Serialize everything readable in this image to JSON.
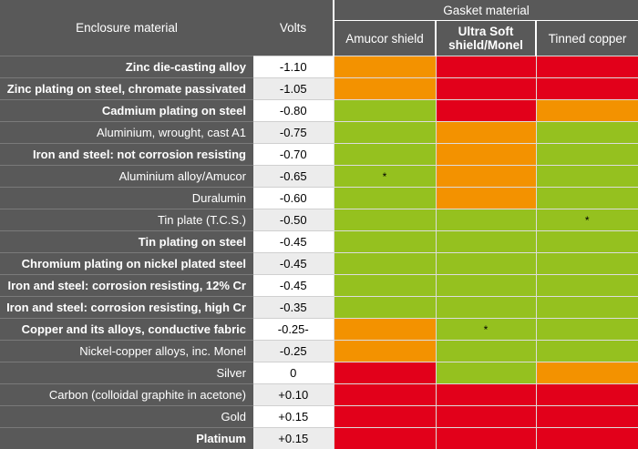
{
  "colors": {
    "header_bg": "#595959",
    "orange": "#f39200",
    "red": "#e2001a",
    "green": "#95c11f"
  },
  "header": {
    "enclosure_material": "Enclosure material",
    "volts": "Volts",
    "gasket_material": "Gasket material",
    "gaskets": [
      {
        "label_line1": "Amucor shield",
        "label_line2": "",
        "bold": false
      },
      {
        "label_line1": "Ultra Soft",
        "label_line2": "shield/Monel",
        "bold": true
      },
      {
        "label_line1": "Tinned copper",
        "label_line2": "",
        "bold": false
      }
    ]
  },
  "rows": [
    {
      "material": "Zinc die-casting alloy",
      "bold": true,
      "volts": "-1.10",
      "cells": [
        "orange",
        "red",
        "red"
      ],
      "marks": [
        "",
        "",
        ""
      ]
    },
    {
      "material": "Zinc plating on steel, chromate passivated",
      "bold": true,
      "volts": "-1.05",
      "cells": [
        "orange",
        "red",
        "red"
      ],
      "marks": [
        "",
        "",
        ""
      ]
    },
    {
      "material": "Cadmium plating on steel",
      "bold": true,
      "volts": "-0.80",
      "cells": [
        "green",
        "red",
        "orange"
      ],
      "marks": [
        "",
        "",
        ""
      ]
    },
    {
      "material": "Aluminium, wrought, cast A1",
      "bold": false,
      "volts": "-0.75",
      "cells": [
        "green",
        "orange",
        "green"
      ],
      "marks": [
        "",
        "",
        ""
      ]
    },
    {
      "material": "Iron and steel: not corrosion resisting",
      "bold": true,
      "volts": "-0.70",
      "cells": [
        "green",
        "orange",
        "green"
      ],
      "marks": [
        "",
        "",
        ""
      ]
    },
    {
      "material": "Aluminium alloy/Amucor",
      "bold": false,
      "volts": "-0.65",
      "cells": [
        "green",
        "orange",
        "green"
      ],
      "marks": [
        "*",
        "",
        ""
      ]
    },
    {
      "material": "Duralumin",
      "bold": false,
      "volts": "-0.60",
      "cells": [
        "green",
        "orange",
        "green"
      ],
      "marks": [
        "",
        "",
        ""
      ]
    },
    {
      "material": "Tin plate (T.C.S.)",
      "bold": false,
      "volts": "-0.50",
      "cells": [
        "green",
        "green",
        "green"
      ],
      "marks": [
        "",
        "",
        "*"
      ]
    },
    {
      "material": "Tin plating on steel",
      "bold": true,
      "volts": "-0.45",
      "cells": [
        "green",
        "green",
        "green"
      ],
      "marks": [
        "",
        "",
        ""
      ]
    },
    {
      "material": "Chromium plating on nickel plated steel",
      "bold": true,
      "volts": "-0.45",
      "cells": [
        "green",
        "green",
        "green"
      ],
      "marks": [
        "",
        "",
        ""
      ]
    },
    {
      "material": "Iron and steel: corrosion resisting, 12% Cr",
      "bold": true,
      "volts": "-0.45",
      "cells": [
        "green",
        "green",
        "green"
      ],
      "marks": [
        "",
        "",
        ""
      ]
    },
    {
      "material": "Iron and steel: corrosion resisting, high Cr",
      "bold": true,
      "volts": "-0.35",
      "cells": [
        "green",
        "green",
        "green"
      ],
      "marks": [
        "",
        "",
        ""
      ]
    },
    {
      "material": "Copper and its alloys, conductive fabric",
      "bold": true,
      "volts": "-0.25-",
      "cells": [
        "orange",
        "green",
        "green"
      ],
      "marks": [
        "",
        "*",
        ""
      ]
    },
    {
      "material": "Nickel-copper alloys, inc. Monel",
      "bold": false,
      "volts": "-0.25",
      "cells": [
        "orange",
        "green",
        "green"
      ],
      "marks": [
        "",
        "",
        ""
      ]
    },
    {
      "material": "Silver",
      "bold": false,
      "volts": "0",
      "cells": [
        "red",
        "green",
        "orange"
      ],
      "marks": [
        "",
        "",
        ""
      ]
    },
    {
      "material": "Carbon (colloidal graphite in acetone)",
      "bold": false,
      "volts": "+0.10",
      "cells": [
        "red",
        "red",
        "red"
      ],
      "marks": [
        "",
        "",
        ""
      ]
    },
    {
      "material": "Gold",
      "bold": false,
      "volts": "+0.15",
      "cells": [
        "red",
        "red",
        "red"
      ],
      "marks": [
        "",
        "",
        ""
      ]
    },
    {
      "material": "Platinum",
      "bold": true,
      "volts": "+0.15",
      "cells": [
        "red",
        "red",
        "red"
      ],
      "marks": [
        "",
        "",
        ""
      ]
    }
  ]
}
